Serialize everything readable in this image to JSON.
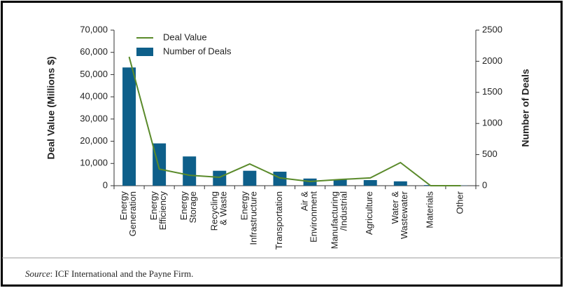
{
  "chart_data": {
    "type": "bar-line",
    "categories": [
      [
        "Energy",
        "Generation"
      ],
      [
        "Energy",
        "Efficiency"
      ],
      [
        "Energy",
        "Storage"
      ],
      [
        "Recycling",
        "& Waste"
      ],
      [
        "Energy",
        "Infrastructure"
      ],
      [
        "Transportation"
      ],
      [
        "Air &",
        "Environment"
      ],
      [
        "Manufacturing",
        "/Industrial"
      ],
      [
        "Agriculture"
      ],
      [
        "Water &",
        "Wastewater"
      ],
      [
        "Materials"
      ],
      [
        "Other"
      ]
    ],
    "series": [
      {
        "name": "Deal Value",
        "type": "line",
        "color": "#5a8a2a",
        "axis": "y",
        "values": [
          58000,
          7500,
          4700,
          3800,
          9800,
          3500,
          1900,
          2800,
          3500,
          10400,
          0,
          0
        ]
      },
      {
        "name": "Number of Deals",
        "type": "bar",
        "color": "#0e5f8a",
        "axis": "y2",
        "values": [
          1900,
          680,
          470,
          240,
          240,
          225,
          115,
          100,
          90,
          70,
          10,
          3
        ]
      }
    ],
    "ylabel": "Deal Value (Millions $)",
    "y2label": "Number of Deals",
    "ylim": [
      0,
      70000
    ],
    "yticks": [
      0,
      {
        "value": 10000,
        "label": "10,000"
      },
      {
        "value": 20000,
        "label": "20,000"
      },
      {
        "value": 30000,
        "label": "30,000"
      },
      {
        "value": 40000,
        "label": "40,000"
      },
      {
        "value": 50000,
        "label": "50,000"
      },
      {
        "value": 60000,
        "label": "60,000"
      },
      {
        "value": 70000,
        "label": "70,000"
      }
    ],
    "y2lim": [
      0,
      2500
    ],
    "y2ticks": [
      0,
      500,
      1000,
      1500,
      2000,
      2500
    ],
    "legend": "upper left",
    "source": {
      "label": "Source",
      "text": ": ICF International and the Payne Firm."
    }
  }
}
